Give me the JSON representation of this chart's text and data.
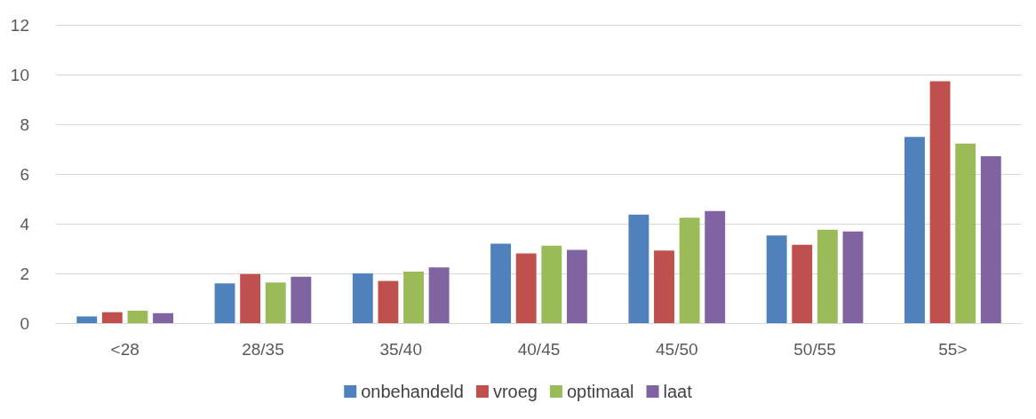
{
  "chart_data": {
    "type": "bar",
    "categories": [
      "<28",
      "28/35",
      "35/40",
      "40/45",
      "45/50",
      "50/55",
      "55>"
    ],
    "series": [
      {
        "name": "onbehandeld",
        "color": "#4f81bd",
        "values": [
          0.27,
          1.6,
          2.0,
          3.2,
          4.37,
          3.53,
          7.49
        ]
      },
      {
        "name": "vroeg",
        "color": "#c0504d",
        "values": [
          0.44,
          1.97,
          1.7,
          2.8,
          2.92,
          3.15,
          9.73
        ]
      },
      {
        "name": "optimaal",
        "color": "#9bbb59",
        "values": [
          0.5,
          1.63,
          2.07,
          3.12,
          4.24,
          3.76,
          7.22
        ]
      },
      {
        "name": "laat",
        "color": "#8064a2",
        "values": [
          0.4,
          1.87,
          2.24,
          2.95,
          4.51,
          3.69,
          6.71
        ]
      }
    ],
    "ylim": [
      0,
      12
    ],
    "yticks": [
      0,
      2,
      4,
      6,
      8,
      10,
      12
    ],
    "grid": "y",
    "legend": "bottom"
  }
}
